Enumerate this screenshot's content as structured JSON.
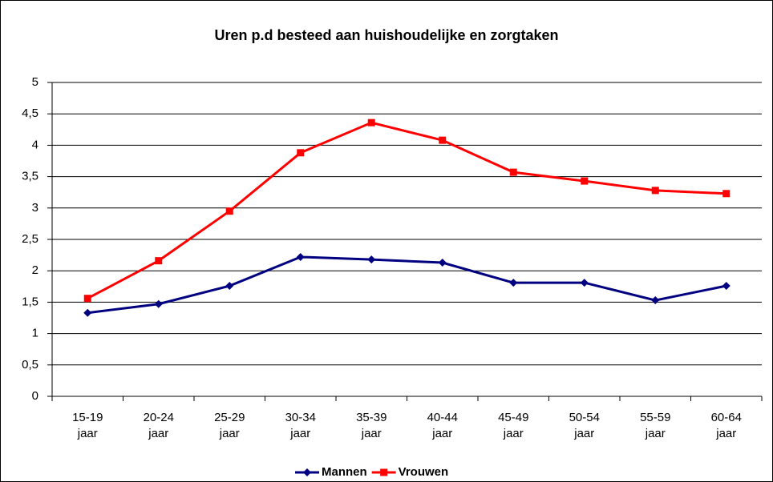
{
  "chart_data": {
    "type": "line",
    "title": "Uren p.d besteed aan huishoudelijke en zorgtaken",
    "categories": [
      "15-19 jaar",
      "20-24 jaar",
      "25-29 jaar",
      "30-34 jaar",
      "35-39 jaar",
      "40-44 jaar",
      "45-49 jaar",
      "50-54 jaar",
      "55-59 jaar",
      "60-64 jaar"
    ],
    "series": [
      {
        "name": "Mannen",
        "color": "#000080",
        "values": [
          1.33,
          1.47,
          1.76,
          2.22,
          2.18,
          2.13,
          1.81,
          1.81,
          1.53,
          1.76
        ]
      },
      {
        "name": "Vrouwen",
        "color": "#ff0000",
        "values": [
          1.56,
          2.16,
          2.95,
          3.88,
          4.36,
          4.08,
          3.57,
          3.43,
          3.28,
          3.23
        ]
      }
    ],
    "ylim": [
      0,
      5
    ],
    "yticks": [
      0,
      {
        "value": 0.5,
        "label": "0,5"
      },
      1,
      {
        "value": 1.5,
        "label": "1,5"
      },
      2,
      {
        "value": 2.5,
        "label": "2,5"
      },
      3,
      {
        "value": 3.5,
        "label": "3,5"
      },
      4,
      {
        "value": 4.5,
        "label": "4,5"
      },
      5
    ],
    "grid": true,
    "legend": "bottom"
  }
}
